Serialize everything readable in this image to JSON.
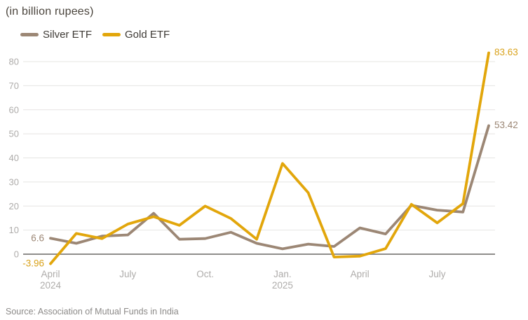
{
  "title": "(in billion rupees)",
  "legend": {
    "items": [
      {
        "label": "Silver ETF",
        "color": "#9c8775"
      },
      {
        "label": "Gold ETF",
        "color": "#e2a60b"
      }
    ]
  },
  "source": "Source: Association of Mutual Funds in India",
  "chart_data": {
    "type": "line",
    "title": "(in billion rupees)",
    "xlabel": "",
    "ylabel": "",
    "grid": true,
    "legend_position": "top",
    "ylim": [
      -5,
      87
    ],
    "y_ticks": [
      0,
      10,
      20,
      30,
      40,
      50,
      60,
      70,
      80
    ],
    "x": [
      "Apr 2024",
      "May 2024",
      "Jun 2024",
      "Jul 2024",
      "Aug 2024",
      "Sep 2024",
      "Oct 2024",
      "Nov 2024",
      "Dec 2024",
      "Jan 2025",
      "Feb 2025",
      "Mar 2025",
      "Apr 2025",
      "May 2025",
      "Jun 2025",
      "Jul 2025",
      "Aug 2025",
      "Sep 2025"
    ],
    "x_tick_labels": [
      {
        "index": 0,
        "label": "April",
        "sub": "2024"
      },
      {
        "index": 3,
        "label": "July"
      },
      {
        "index": 6,
        "label": "Oct."
      },
      {
        "index": 9,
        "label": "Jan.",
        "sub": "2025"
      },
      {
        "index": 12,
        "label": "April"
      },
      {
        "index": 15,
        "label": "July"
      }
    ],
    "series": [
      {
        "name": "Silver ETF",
        "color": "#9c8775",
        "values": [
          6.6,
          4.5,
          7.5,
          8.0,
          17.0,
          6.2,
          6.5,
          9.1,
          4.5,
          2.2,
          4.2,
          3.2,
          10.9,
          8.4,
          20.3,
          18.3,
          17.5,
          53.42
        ]
      },
      {
        "name": "Gold ETF",
        "color": "#e2a60b",
        "values": [
          -3.96,
          8.6,
          6.5,
          12.5,
          15.6,
          12.0,
          20.0,
          14.8,
          6.2,
          37.7,
          25.5,
          -1.2,
          -0.8,
          2.3,
          20.7,
          13.0,
          21.0,
          83.63
        ]
      }
    ],
    "annotations": [
      {
        "text": "6.6",
        "series": "Silver ETF",
        "position": "first-point",
        "value": 6.6,
        "color": "#9c8775"
      },
      {
        "text": "-3.96",
        "series": "Gold ETF",
        "position": "first-point",
        "value": -3.96,
        "color": "#d9a21b"
      },
      {
        "text": "53.42",
        "series": "Silver ETF",
        "position": "last-point",
        "value": 53.42,
        "color": "#9c8775"
      },
      {
        "text": "83.63",
        "series": "Gold ETF",
        "position": "last-point",
        "value": 83.63,
        "color": "#d9a21b"
      }
    ]
  },
  "axis_style": {
    "tick_label_color": "#aeacaa",
    "gridline_color": "#e5e4e2",
    "zero_line_color": "#8f8d8b"
  }
}
